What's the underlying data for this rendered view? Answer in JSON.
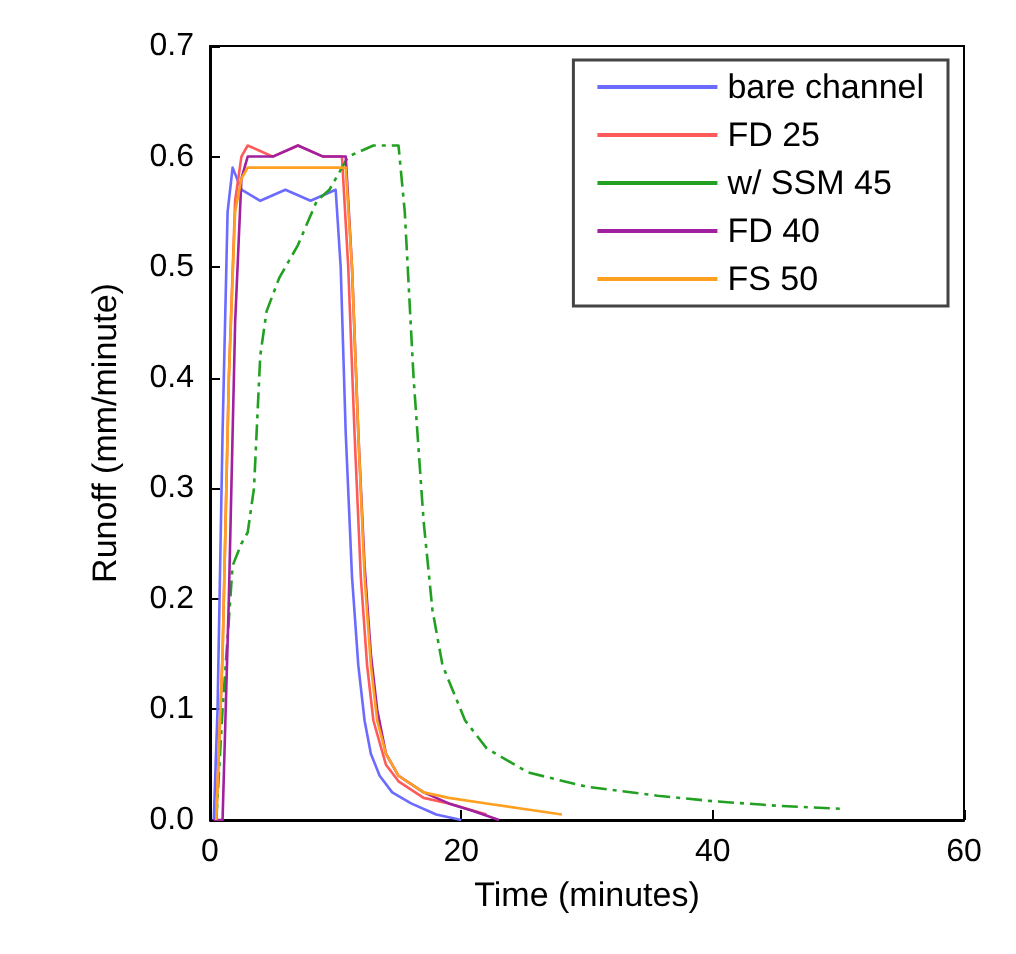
{
  "chart_data": {
    "type": "line",
    "xlabel": "Time (minutes)",
    "ylabel": "Runoff (mm/minute)",
    "xlim": [
      0,
      60
    ],
    "ylim": [
      0,
      0.7
    ],
    "xticks": [
      0,
      20,
      40,
      60
    ],
    "yticks": [
      {
        "value": 0,
        "label": "0.0"
      },
      {
        "value": 0.1,
        "label": "0.1"
      },
      {
        "value": 0.2,
        "label": "0.2"
      },
      {
        "value": 0.3,
        "label": "0.3"
      },
      {
        "value": 0.4,
        "label": "0.4"
      },
      {
        "value": 0.5,
        "label": "0.5"
      },
      {
        "value": 0.6,
        "label": "0.6"
      },
      {
        "value": 0.7,
        "label": "0.7"
      }
    ],
    "grid": false,
    "legend": "top right",
    "marker": "none",
    "line_style": "solid",
    "series": [
      {
        "name": "bare channel",
        "color": "#6b6bff",
        "x": [
          0.3,
          0.6,
          1,
          1.4,
          1.8,
          2.5,
          4,
          6,
          8,
          10,
          10.4,
          10.8,
          11.3,
          11.8,
          12.3,
          12.8,
          13.5,
          14.5,
          16,
          18,
          20
        ],
        "values": [
          0,
          0.1,
          0.35,
          0.55,
          0.59,
          0.57,
          0.56,
          0.57,
          0.56,
          0.57,
          0.5,
          0.35,
          0.22,
          0.14,
          0.09,
          0.06,
          0.04,
          0.025,
          0.015,
          0.005,
          0
        ]
      },
      {
        "name": "FD 25",
        "color": "#ff5a5a",
        "x": [
          0.5,
          1,
          1.5,
          2,
          2.5,
          3,
          5,
          7,
          9,
          10.5,
          11,
          11.5,
          12,
          12.5,
          13,
          14,
          15,
          17,
          19,
          22
        ],
        "values": [
          0,
          0.15,
          0.4,
          0.56,
          0.6,
          0.61,
          0.6,
          0.61,
          0.6,
          0.6,
          0.5,
          0.35,
          0.22,
          0.14,
          0.09,
          0.05,
          0.035,
          0.02,
          0.015,
          0.005
        ]
      },
      {
        "name": "w/ SSM 45",
        "color": "#22a022",
        "line_style": "dashed",
        "x": [
          0.5,
          1,
          1.8,
          2.5,
          3,
          3.5,
          4,
          4.5,
          5.5,
          7,
          8.5,
          9.5,
          11,
          13,
          15,
          15.5,
          16.2,
          17,
          17.7,
          18.5,
          20.3,
          22,
          25.3,
          30,
          35.6,
          40,
          45,
          50.5
        ],
        "values": [
          0,
          0.1,
          0.23,
          0.25,
          0.26,
          0.3,
          0.42,
          0.46,
          0.49,
          0.52,
          0.56,
          0.57,
          0.6,
          0.61,
          0.61,
          0.55,
          0.4,
          0.27,
          0.19,
          0.14,
          0.09,
          0.065,
          0.043,
          0.03,
          0.022,
          0.017,
          0.013,
          0.01
        ]
      },
      {
        "name": "FD 40",
        "color": "#a020a0",
        "x": [
          0.3,
          1,
          1.5,
          2,
          2.5,
          3,
          5,
          7,
          9,
          10.8,
          11.3,
          11.8,
          12.3,
          12.8,
          13.3,
          14,
          15,
          17,
          19,
          21,
          23
        ],
        "values": [
          0,
          0,
          0.2,
          0.45,
          0.58,
          0.6,
          0.6,
          0.61,
          0.6,
          0.6,
          0.5,
          0.35,
          0.23,
          0.15,
          0.1,
          0.06,
          0.04,
          0.025,
          0.015,
          0.008,
          0
        ]
      },
      {
        "name": "FS 50",
        "color": "#ffa020",
        "x": [
          0.5,
          1,
          1.5,
          2,
          2.5,
          3,
          5,
          7,
          9,
          10.8,
          11.3,
          11.8,
          12.3,
          12.8,
          13.3,
          14,
          15,
          17,
          19,
          22,
          25,
          28
        ],
        "values": [
          0,
          0.15,
          0.4,
          0.55,
          0.58,
          0.59,
          0.59,
          0.59,
          0.59,
          0.59,
          0.5,
          0.35,
          0.22,
          0.14,
          0.09,
          0.06,
          0.04,
          0.025,
          0.02,
          0.015,
          0.01,
          0.005
        ]
      }
    ]
  }
}
